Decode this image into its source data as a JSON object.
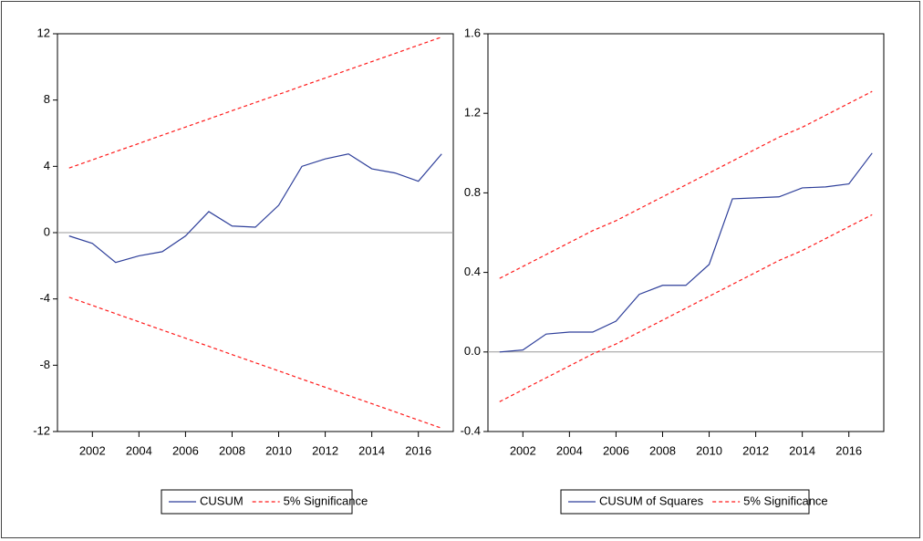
{
  "chart_data": [
    {
      "type": "line",
      "x": [
        2001,
        2002,
        2003,
        2004,
        2005,
        2006,
        2007,
        2008,
        2009,
        2010,
        2011,
        2012,
        2013,
        2014,
        2015,
        2016,
        2017
      ],
      "xlim": [
        2000.5,
        2017.5
      ],
      "xticks": [
        2002,
        2004,
        2006,
        2008,
        2010,
        2012,
        2014,
        2016
      ],
      "ylim": [
        -12,
        12
      ],
      "yticks": [
        12,
        8,
        4,
        0,
        -4,
        -8,
        -12
      ],
      "zero_line": true,
      "series": [
        {
          "name": "CUSUM",
          "color": "#2e3f9a",
          "values": [
            -0.2,
            -0.65,
            -1.8,
            -1.4,
            -1.15,
            -0.2,
            1.27,
            0.4,
            0.33,
            1.65,
            4.0,
            4.45,
            4.75,
            3.85,
            3.6,
            3.1,
            4.75
          ]
        },
        {
          "name": "5% Significance",
          "color": "#ff1a1a",
          "dashed": true,
          "upper": [
            3.9,
            4.39,
            4.89,
            5.38,
            5.88,
            6.37,
            6.86,
            7.36,
            7.85,
            8.34,
            8.84,
            9.33,
            9.83,
            10.32,
            10.81,
            11.31,
            11.8
          ],
          "lower": [
            -3.9,
            -4.39,
            -4.89,
            -5.38,
            -5.88,
            -6.37,
            -6.86,
            -7.36,
            -7.85,
            -8.34,
            -8.84,
            -9.33,
            -9.83,
            -10.32,
            -10.81,
            -11.31,
            -11.8
          ]
        }
      ]
    },
    {
      "type": "line",
      "x": [
        2001,
        2002,
        2003,
        2004,
        2005,
        2006,
        2007,
        2008,
        2009,
        2010,
        2011,
        2012,
        2013,
        2014,
        2015,
        2016,
        2017
      ],
      "xlim": [
        2000.5,
        2017.5
      ],
      "xticks": [
        2002,
        2004,
        2006,
        2008,
        2010,
        2012,
        2014,
        2016
      ],
      "ylim": [
        -0.4,
        1.6
      ],
      "yticks": [
        1.6,
        1.2,
        0.8,
        0.4,
        {
          "value": 0,
          "label": "0.0"
        },
        -0.4
      ],
      "zero_line": true,
      "series": [
        {
          "name": "CUSUM of Squares",
          "color": "#2e3f9a",
          "values": [
            0.0,
            0.01,
            0.09,
            0.1,
            0.1,
            0.155,
            0.29,
            0.335,
            0.335,
            0.44,
            0.77,
            0.775,
            0.78,
            0.825,
            0.83,
            0.845,
            1.0
          ]
        },
        {
          "name": "5% Significance",
          "color": "#ff1a1a",
          "dashed": true,
          "upper": [
            0.37,
            0.43,
            0.49,
            0.55,
            0.61,
            0.66,
            0.72,
            0.78,
            0.84,
            0.9,
            0.96,
            1.02,
            1.08,
            1.13,
            1.19,
            1.25,
            1.31
          ],
          "lower": [
            -0.25,
            -0.19,
            -0.13,
            -0.07,
            -0.01,
            0.04,
            0.1,
            0.16,
            0.22,
            0.28,
            0.34,
            0.4,
            0.46,
            0.51,
            0.57,
            0.63,
            0.69
          ]
        }
      ]
    }
  ]
}
